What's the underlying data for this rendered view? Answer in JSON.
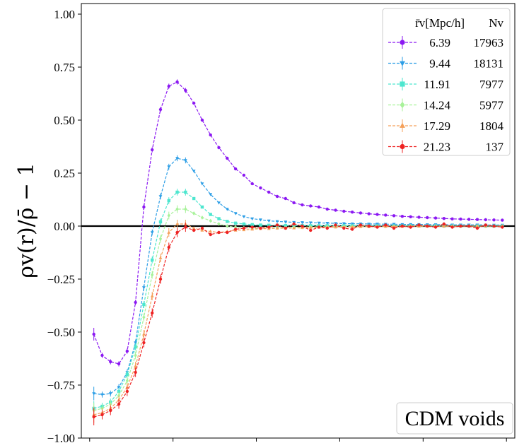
{
  "chart_data": {
    "type": "line",
    "title": "",
    "xlabel": "",
    "ylabel": "ρv(r)/ρ̄ − 1",
    "ylim": [
      -1.0,
      1.05
    ],
    "xlim": [
      -0.1,
      5.1
    ],
    "xticks": [
      0,
      1,
      2,
      3,
      4,
      5
    ],
    "yticks": [
      -1.0,
      -0.75,
      -0.5,
      -0.25,
      0.0,
      0.25,
      0.5,
      0.75,
      1.0
    ],
    "ytick_labels": [
      "−1.00",
      "−0.75",
      "−0.50",
      "−0.25",
      "0.00",
      "0.25",
      "0.50",
      "0.75",
      "1.00"
    ],
    "zero_line": 0.0,
    "annotation": "CDM voids",
    "legend": {
      "position": "top-right",
      "header_col1": "r̄v[Mpc/h]",
      "header_col2": "Nv"
    },
    "x": [
      0.05,
      0.15,
      0.25,
      0.35,
      0.45,
      0.55,
      0.65,
      0.75,
      0.85,
      0.95,
      1.05,
      1.15,
      1.25,
      1.35,
      1.45,
      1.55,
      1.65,
      1.75,
      1.85,
      1.95,
      2.05,
      2.15,
      2.25,
      2.35,
      2.45,
      2.55,
      2.65,
      2.75,
      2.85,
      2.95,
      3.05,
      3.15,
      3.25,
      3.35,
      3.45,
      3.55,
      3.65,
      3.75,
      3.85,
      3.95,
      4.05,
      4.15,
      4.25,
      4.35,
      4.45,
      4.55,
      4.65,
      4.75,
      4.85,
      4.95
    ],
    "series": [
      {
        "name": "6.39",
        "count": "17963",
        "color": "#8b18f2",
        "marker": "circle",
        "values": [
          -0.51,
          -0.61,
          -0.64,
          -0.65,
          -0.59,
          -0.36,
          0.09,
          0.36,
          0.55,
          0.66,
          0.68,
          0.64,
          0.58,
          0.5,
          0.43,
          0.37,
          0.32,
          0.27,
          0.24,
          0.2,
          0.18,
          0.16,
          0.14,
          0.13,
          0.11,
          0.1,
          0.095,
          0.09,
          0.08,
          0.075,
          0.07,
          0.066,
          0.062,
          0.058,
          0.055,
          0.052,
          0.049,
          0.046,
          0.044,
          0.042,
          0.04,
          0.038,
          0.036,
          0.034,
          0.033,
          0.032,
          0.031,
          0.03,
          0.029,
          0.028
        ]
      },
      {
        "name": "9.44",
        "count": "18131",
        "color": "#2c9ee6",
        "marker": "tri_down",
        "values": [
          -0.79,
          -0.795,
          -0.79,
          -0.76,
          -0.69,
          -0.55,
          -0.29,
          -0.03,
          0.14,
          0.28,
          0.32,
          0.31,
          0.26,
          0.2,
          0.15,
          0.11,
          0.08,
          0.06,
          0.045,
          0.035,
          0.03,
          0.025,
          0.022,
          0.02,
          0.018,
          0.017,
          0.016,
          0.015,
          0.014,
          0.013,
          0.012,
          0.011,
          0.011,
          0.01,
          0.01,
          0.009,
          0.009,
          0.008,
          0.008,
          0.008,
          0.007,
          0.007,
          0.007,
          0.006,
          0.006,
          0.006,
          0.006,
          0.005,
          0.005,
          0.005
        ]
      },
      {
        "name": "11.91",
        "count": "7977",
        "color": "#4de6cf",
        "marker": "square",
        "values": [
          -0.86,
          -0.85,
          -0.83,
          -0.78,
          -0.7,
          -0.57,
          -0.37,
          -0.16,
          0.02,
          0.12,
          0.16,
          0.16,
          0.13,
          0.09,
          0.055,
          0.035,
          0.022,
          0.014,
          0.01,
          0.007,
          0.005,
          0.004,
          0.004,
          0.003,
          0.003,
          0.003,
          0.002,
          0.002,
          0.002,
          0.002,
          0.002,
          0.002,
          0.001,
          0.001,
          0.001,
          0.001,
          0.001,
          0.001,
          0.001,
          0.001,
          0.001,
          0.001,
          0.0,
          0.0,
          0.0,
          0.0,
          0.0,
          0.0,
          0.0,
          0.0
        ]
      },
      {
        "name": "14.24",
        "count": "5977",
        "color": "#a8f29a",
        "marker": "diamond",
        "values": [
          -0.87,
          -0.86,
          -0.84,
          -0.8,
          -0.73,
          -0.61,
          -0.43,
          -0.23,
          -0.06,
          0.05,
          0.08,
          0.08,
          0.06,
          0.04,
          0.025,
          0.01,
          0.0,
          -0.005,
          -0.008,
          -0.01,
          -0.01,
          -0.009,
          -0.008,
          -0.007,
          -0.006,
          -0.005,
          -0.004,
          -0.003,
          -0.003,
          -0.002,
          -0.002,
          -0.002,
          -0.001,
          -0.001,
          -0.001,
          -0.001,
          -0.001,
          0.0,
          0.0,
          0.0,
          0.0,
          0.0,
          0.0,
          0.0,
          0.0,
          0.0,
          0.0,
          0.0,
          0.0,
          0.0
        ]
      },
      {
        "name": "17.29",
        "count": "1804",
        "color": "#f5a05a",
        "marker": "triangle",
        "values": [
          -0.89,
          -0.88,
          -0.86,
          -0.82,
          -0.76,
          -0.66,
          -0.51,
          -0.33,
          -0.15,
          -0.03,
          0.01,
          0.01,
          -0.01,
          -0.02,
          -0.025,
          -0.03,
          -0.025,
          -0.02,
          -0.018,
          -0.015,
          -0.012,
          -0.012,
          -0.01,
          -0.01,
          -0.009,
          -0.008,
          -0.007,
          -0.006,
          -0.005,
          -0.005,
          -0.004,
          -0.004,
          -0.003,
          -0.003,
          -0.002,
          -0.002,
          -0.002,
          -0.002,
          -0.001,
          -0.001,
          -0.001,
          -0.001,
          -0.001,
          -0.001,
          0.0,
          0.0,
          0.0,
          0.0,
          0.0,
          0.0
        ]
      },
      {
        "name": "21.23",
        "count": "137",
        "color": "#ee2222",
        "marker": "circle",
        "values": [
          -0.9,
          -0.89,
          -0.87,
          -0.84,
          -0.78,
          -0.69,
          -0.55,
          -0.41,
          -0.25,
          -0.1,
          -0.03,
          -0.005,
          -0.02,
          -0.01,
          -0.04,
          -0.03,
          -0.03,
          -0.015,
          -0.01,
          -0.005,
          -0.01,
          -0.005,
          0.005,
          -0.01,
          0.01,
          0.0,
          -0.02,
          -0.005,
          -0.01,
          0.005,
          -0.01,
          -0.015,
          0.005,
          0.0,
          -0.005,
          0.005,
          -0.01,
          0.0,
          -0.005,
          0.005,
          0.0,
          -0.005,
          0.01,
          -0.005,
          0.0,
          0.0,
          -0.01,
          0.005,
          0.0,
          -0.005
        ]
      }
    ]
  }
}
